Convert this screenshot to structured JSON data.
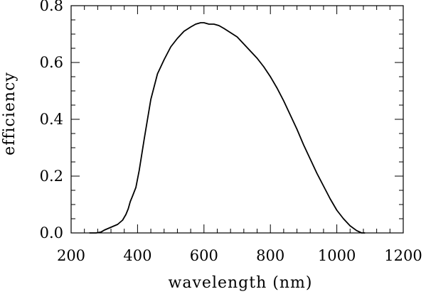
{
  "chart_data": {
    "type": "line",
    "title": "",
    "xlabel": "wavelength (nm)",
    "ylabel": "efficiency",
    "xlim": [
      200,
      1200
    ],
    "ylim": [
      0.0,
      0.8
    ],
    "x_ticks": [
      200,
      400,
      600,
      800,
      1000,
      1200
    ],
    "x_tick_labels": [
      "200",
      "400",
      "600",
      "800",
      "1000",
      "1200"
    ],
    "y_ticks": [
      0.0,
      0.2,
      0.4,
      0.6,
      0.8
    ],
    "y_tick_labels": [
      "0.0",
      "0.2",
      "0.4",
      "0.6",
      "0.8"
    ],
    "x_minor_step": 40,
    "y_minor_step": 0.05,
    "grid": false,
    "legend": "none",
    "line_color": "#000000",
    "series": [
      {
        "x": [
          255,
          275,
          290,
          300,
          320,
          340,
          355,
          365,
          372,
          378,
          385,
          395,
          405,
          420,
          440,
          460,
          480,
          500,
          520,
          540,
          560,
          575,
          590,
          600,
          615,
          630,
          645,
          660,
          680,
          700,
          720,
          740,
          760,
          780,
          800,
          820,
          840,
          860,
          880,
          900,
          920,
          940,
          960,
          980,
          1000,
          1020,
          1040,
          1060,
          1075,
          1085
        ],
        "y": [
          0.0,
          0.0,
          0.003,
          0.01,
          0.02,
          0.03,
          0.045,
          0.065,
          0.085,
          0.11,
          0.13,
          0.16,
          0.22,
          0.33,
          0.47,
          0.56,
          0.61,
          0.655,
          0.685,
          0.71,
          0.725,
          0.735,
          0.74,
          0.74,
          0.735,
          0.735,
          0.73,
          0.72,
          0.705,
          0.69,
          0.665,
          0.64,
          0.615,
          0.585,
          0.55,
          0.51,
          0.465,
          0.415,
          0.365,
          0.31,
          0.26,
          0.21,
          0.165,
          0.12,
          0.08,
          0.05,
          0.025,
          0.008,
          0.0,
          0.0
        ]
      }
    ]
  }
}
